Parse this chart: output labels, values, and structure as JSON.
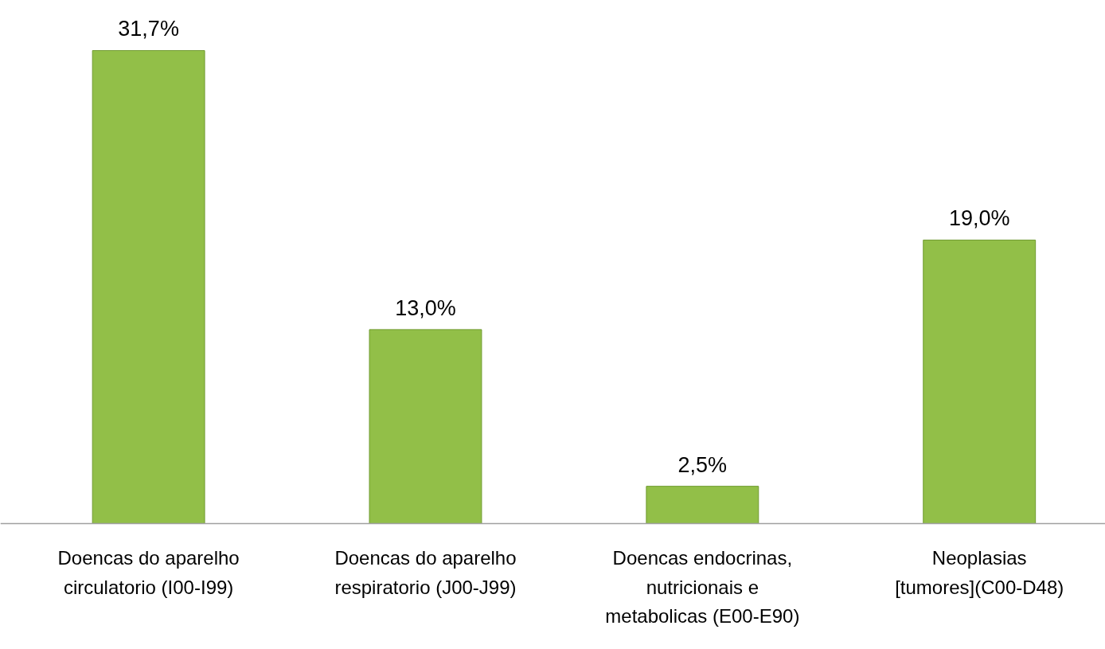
{
  "chart_data": {
    "type": "bar",
    "categories": [
      "Doencas do aparelho\ncirculatorio (I00-I99)",
      "Doencas do aparelho\nrespiratorio (J00-J99)",
      "Doencas endocrinas,\nnutricionais e\nmetabolicas (E00-E90)",
      "Neoplasias\n[tumores](C00-D48)"
    ],
    "values": [
      31.7,
      13.0,
      2.5,
      19.0
    ],
    "value_labels": [
      "31,7%",
      "13,0%",
      "2,5%",
      "19,0%"
    ],
    "color": "#92bf48",
    "grid": false
  }
}
